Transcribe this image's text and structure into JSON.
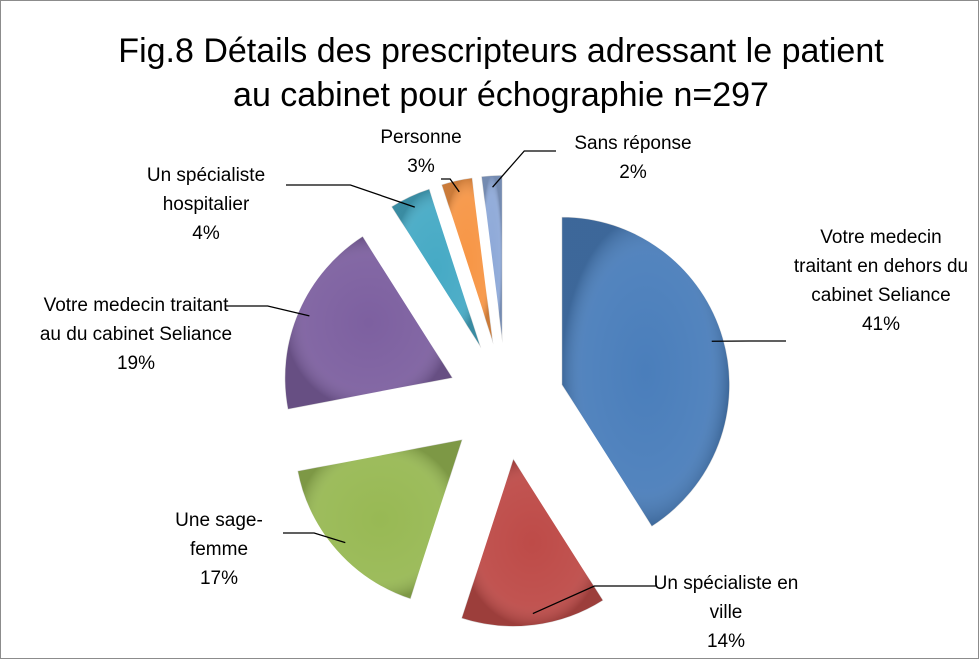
{
  "chart_data": {
    "type": "pie",
    "title": "Fig.8 Détails des prescripteurs adressant le patient au cabinet pour échographie n=297",
    "categories": [
      "Votre medecin traitant en dehors du cabinet Seliance",
      "Un spécialiste en ville",
      "Une sage-femme",
      "Votre medecin traitant au du cabinet Seliance",
      "Un spécialiste hospitalier",
      "Personne",
      "Sans réponse"
    ],
    "values": [
      41,
      14,
      17,
      19,
      4,
      3,
      2
    ],
    "value_labels": [
      "41%",
      "14%",
      "17%",
      "19%",
      "4%",
      "3%",
      "2%"
    ],
    "colors": [
      "#4a7ebb",
      "#be4b48",
      "#98b954",
      "#7d60a0",
      "#46aac5",
      "#f79646",
      "#8ea9d8"
    ]
  }
}
